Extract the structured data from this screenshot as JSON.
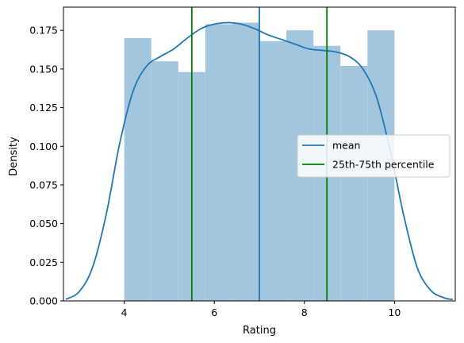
{
  "chart_data": {
    "type": "bar",
    "xlabel": "Rating",
    "ylabel": "Density",
    "xlim": [
      2.65,
      11.35
    ],
    "ylim": [
      0,
      0.19
    ],
    "xticks": [
      4,
      6,
      8,
      10
    ],
    "yticks": [
      0.0,
      0.025,
      0.05,
      0.075,
      0.1,
      0.125,
      0.15,
      0.175
    ],
    "ytick_labels": [
      "0.000",
      "0.025",
      "0.050",
      "0.075",
      "0.100",
      "0.125",
      "0.150",
      "0.175"
    ],
    "xtick_labels": [
      "4",
      "6",
      "8",
      "10"
    ],
    "histogram": {
      "bin_edges": [
        4.0,
        4.6,
        5.2,
        5.8,
        6.4,
        7.0,
        7.6,
        8.2,
        8.8,
        9.4,
        10.0
      ],
      "densities": [
        0.17,
        0.155,
        0.148,
        0.179,
        0.18,
        0.168,
        0.175,
        0.165,
        0.152,
        0.175
      ],
      "color": "#a3c6df"
    },
    "kde": {
      "x": [
        2.7,
        3.0,
        3.3,
        3.6,
        3.9,
        4.2,
        4.5,
        4.8,
        5.1,
        5.4,
        5.7,
        6.0,
        6.3,
        6.6,
        6.9,
        7.2,
        7.5,
        7.8,
        8.1,
        8.4,
        8.7,
        9.0,
        9.3,
        9.6,
        9.9,
        10.2,
        10.5,
        10.8,
        11.1,
        11.3
      ],
      "y": [
        0.001,
        0.006,
        0.022,
        0.056,
        0.102,
        0.136,
        0.152,
        0.158,
        0.163,
        0.17,
        0.176,
        0.179,
        0.18,
        0.179,
        0.176,
        0.172,
        0.169,
        0.166,
        0.163,
        0.162,
        0.161,
        0.158,
        0.15,
        0.132,
        0.098,
        0.056,
        0.022,
        0.007,
        0.002,
        0.001
      ],
      "color": "#1f77b4"
    },
    "vlines": [
      {
        "name": "mean",
        "x": 7.0,
        "color": "#1f77b4"
      },
      {
        "name": "25th-75th percentile",
        "x": 5.5,
        "color": "#008000"
      },
      {
        "name": "25th-75th percentile",
        "x": 8.5,
        "color": "#008000"
      }
    ],
    "legend": {
      "placement": "center-right",
      "entries": [
        {
          "label": "mean",
          "color": "#1f77b4"
        },
        {
          "label": "25th-75th percentile",
          "color": "#008000"
        }
      ]
    },
    "grid": false
  }
}
